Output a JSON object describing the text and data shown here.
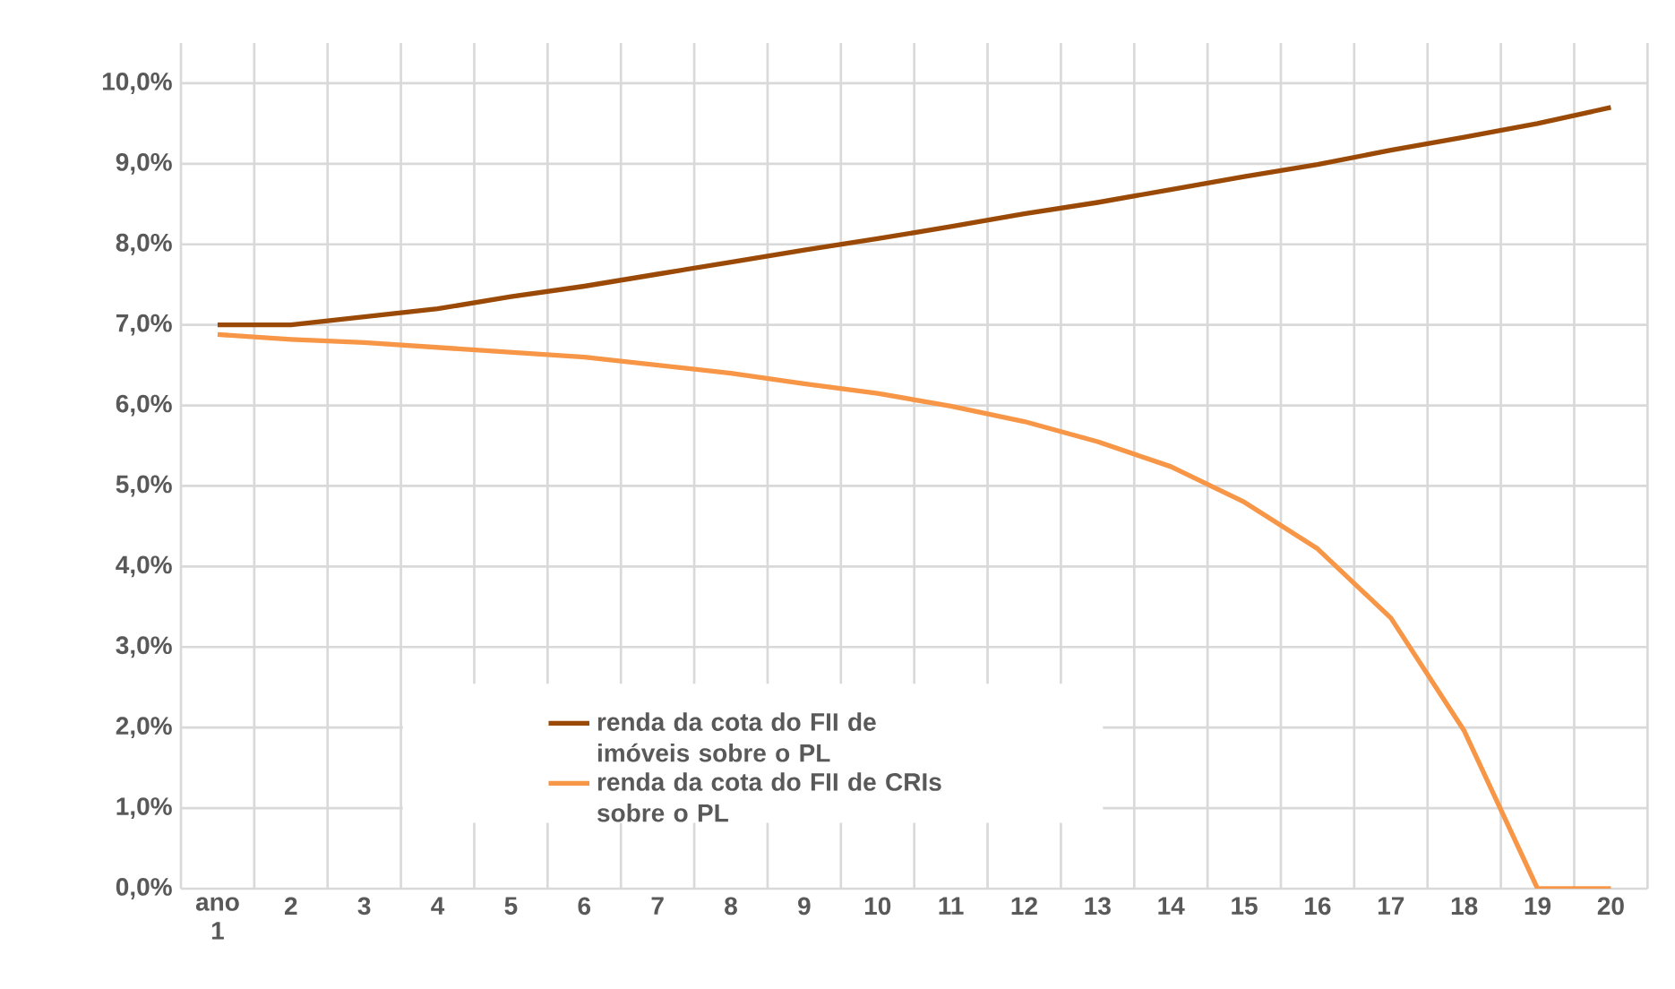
{
  "chart_data": {
    "type": "line",
    "categories": [
      "ano 1",
      "2",
      "3",
      "4",
      "5",
      "6",
      "7",
      "8",
      "9",
      "10",
      "11",
      "12",
      "13",
      "14",
      "15",
      "16",
      "17",
      "18",
      "19",
      "20"
    ],
    "series": [
      {
        "name": "renda da cota do FII de imóveis sobre o PL",
        "color": "#9a4a06",
        "values": [
          7.0,
          7.0,
          7.1,
          7.2,
          7.35,
          7.48,
          7.63,
          7.78,
          7.93,
          8.07,
          8.22,
          8.38,
          8.52,
          8.68,
          8.84,
          8.99,
          9.17,
          9.33,
          9.5,
          9.7
        ]
      },
      {
        "name": "renda da cota do FII de CRIs sobre o PL",
        "color": "#f79646",
        "values": [
          6.88,
          6.82,
          6.78,
          6.72,
          6.66,
          6.6,
          6.5,
          6.4,
          6.27,
          6.15,
          5.99,
          5.8,
          5.55,
          5.24,
          4.8,
          4.22,
          3.36,
          1.96,
          0,
          0
        ]
      }
    ],
    "ylim": [
      0,
      10.5
    ],
    "yticks": [
      {
        "value": 0,
        "label": "0,0%"
      },
      {
        "value": 1,
        "label": "1,0%"
      },
      {
        "value": 2,
        "label": "2,0%"
      },
      {
        "value": 3,
        "label": "3,0%"
      },
      {
        "value": 4,
        "label": "4,0%"
      },
      {
        "value": 5,
        "label": "5,0%"
      },
      {
        "value": 6,
        "label": "6,0%"
      },
      {
        "value": 7,
        "label": "7,0%"
      },
      {
        "value": 8,
        "label": "8,0%"
      },
      {
        "value": 9,
        "label": "9,0%"
      },
      {
        "value": 10,
        "label": "10,0%"
      }
    ],
    "grid": true,
    "legend": "bottom left",
    "marker": "none",
    "line_style": "solid"
  }
}
